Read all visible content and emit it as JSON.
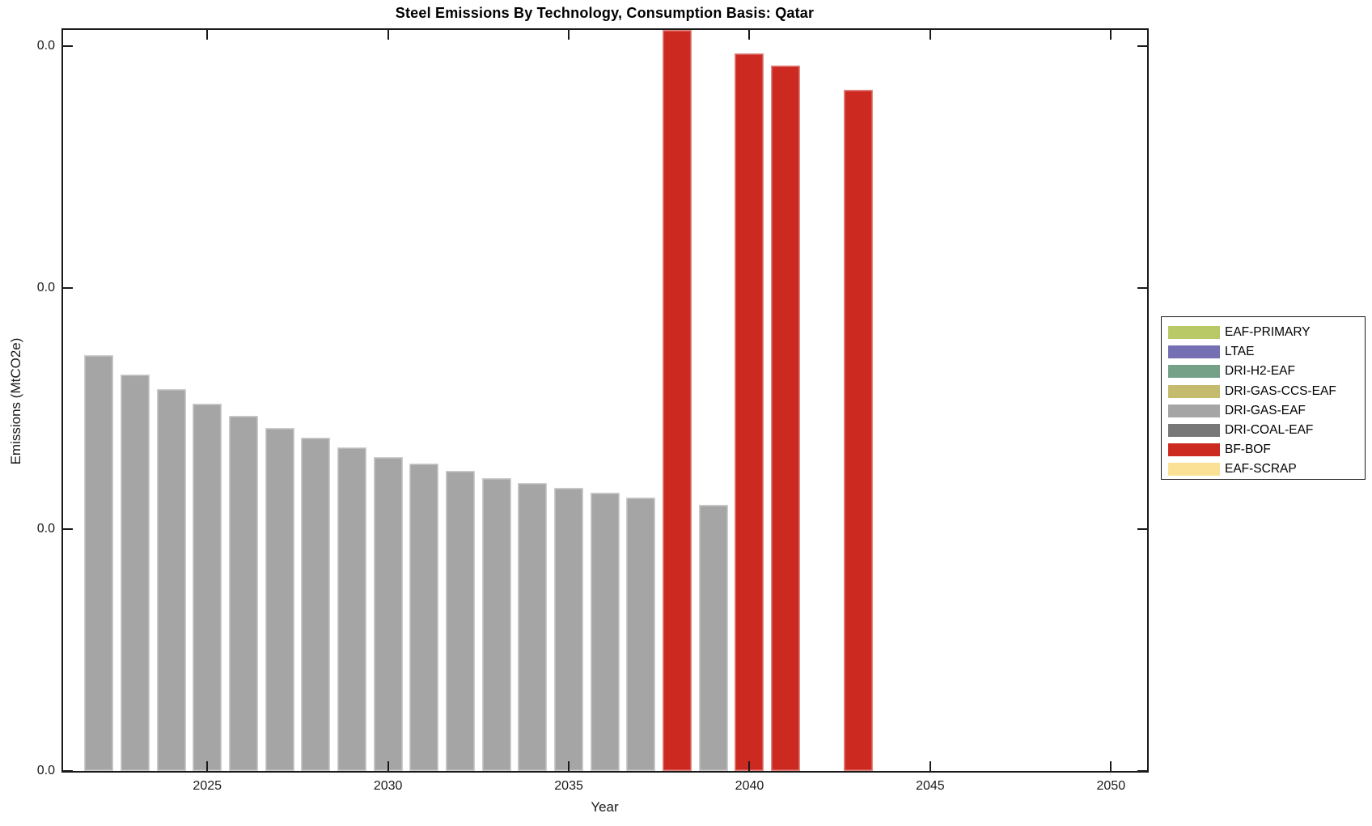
{
  "chart_data": {
    "type": "bar",
    "title": "Steel Emissions By Technology, Consumption Basis: Qatar",
    "xlabel": "Year",
    "ylabel": "Emissions (MtCO2e)",
    "xlim": [
      2021,
      2051
    ],
    "ylim_units": [
      0,
      3.069
    ],
    "x_tick_years": [
      2025,
      2030,
      2035,
      2040,
      2045,
      2050
    ],
    "y_ticks": [
      {
        "units": 0,
        "label": "0.0"
      },
      {
        "units": 1,
        "label": "0.0"
      },
      {
        "units": 2,
        "label": "0.0"
      },
      {
        "units": 3,
        "label": "0.0"
      }
    ],
    "note": "All four y-axis tick labels display 0.0; bar values are given in y-axis tick units (1 unit = one tick interval). The 2038 BF-BOF bar exceeds the y-axis range and is clipped at the top of the plot.",
    "grid": false,
    "legend_position": "outside-right",
    "series": [
      {
        "name": "EAF-PRIMARY",
        "color": "#b9c968"
      },
      {
        "name": "LTAE",
        "color": "#7570b3"
      },
      {
        "name": "DRI-H2-EAF",
        "color": "#76a189"
      },
      {
        "name": "DRI-GAS-CCS-EAF",
        "color": "#c5bb6e"
      },
      {
        "name": "DRI-GAS-EAF",
        "color": "#a5a5a5"
      },
      {
        "name": "DRI-COAL-EAF",
        "color": "#787878"
      },
      {
        "name": "BF-BOF",
        "color": "#cc2a21"
      },
      {
        "name": "EAF-SCRAP",
        "color": "#fbe195"
      }
    ],
    "bars": [
      {
        "year": 2022,
        "series": "DRI-GAS-EAF",
        "value_units": 1.72
      },
      {
        "year": 2023,
        "series": "DRI-GAS-EAF",
        "value_units": 1.64
      },
      {
        "year": 2024,
        "series": "DRI-GAS-EAF",
        "value_units": 1.58
      },
      {
        "year": 2025,
        "series": "DRI-GAS-EAF",
        "value_units": 1.52
      },
      {
        "year": 2026,
        "series": "DRI-GAS-EAF",
        "value_units": 1.47
      },
      {
        "year": 2027,
        "series": "DRI-GAS-EAF",
        "value_units": 1.42
      },
      {
        "year": 2028,
        "series": "DRI-GAS-EAF",
        "value_units": 1.38
      },
      {
        "year": 2029,
        "series": "DRI-GAS-EAF",
        "value_units": 1.34
      },
      {
        "year": 2030,
        "series": "DRI-GAS-EAF",
        "value_units": 1.3
      },
      {
        "year": 2031,
        "series": "DRI-GAS-EAF",
        "value_units": 1.27
      },
      {
        "year": 2032,
        "series": "DRI-GAS-EAF",
        "value_units": 1.24
      },
      {
        "year": 2033,
        "series": "DRI-GAS-EAF",
        "value_units": 1.21
      },
      {
        "year": 2034,
        "series": "DRI-GAS-EAF",
        "value_units": 1.19
      },
      {
        "year": 2035,
        "series": "DRI-GAS-EAF",
        "value_units": 1.17
      },
      {
        "year": 2036,
        "series": "DRI-GAS-EAF",
        "value_units": 1.15
      },
      {
        "year": 2037,
        "series": "DRI-GAS-EAF",
        "value_units": 1.13
      },
      {
        "year": 2038,
        "series": "BF-BOF",
        "value_units": 3.3,
        "clipped": true
      },
      {
        "year": 2039,
        "series": "DRI-GAS-EAF",
        "value_units": 1.1
      },
      {
        "year": 2040,
        "series": "BF-BOF",
        "value_units": 2.97
      },
      {
        "year": 2041,
        "series": "BF-BOF",
        "value_units": 2.92
      },
      {
        "year": 2043,
        "series": "BF-BOF",
        "value_units": 2.82
      }
    ]
  }
}
